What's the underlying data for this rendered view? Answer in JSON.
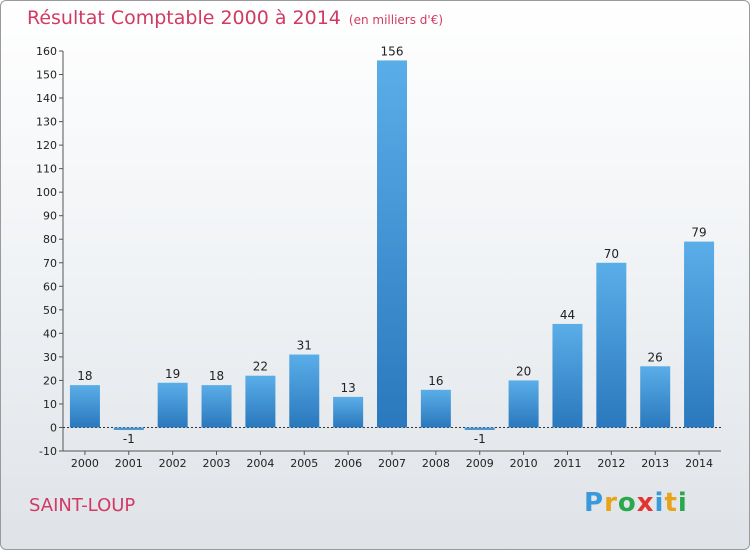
{
  "title": {
    "main": "Résultat Comptable 2000 à 2014",
    "unit": "(en milliers d'€)"
  },
  "place": "SAINT-LOUP",
  "logo": {
    "letters": [
      "P",
      "r",
      "o",
      "x",
      "i",
      "t",
      "i"
    ],
    "colors": [
      "#3a9ad9",
      "#e8a317",
      "#2aa84a",
      "#e3342f",
      "#3a9ad9",
      "#e8a317",
      "#2aa84a"
    ]
  },
  "colors": {
    "bar_light": "#5aaee8",
    "bar_dark": "#2a78bd",
    "title": "#d03a63"
  },
  "chart_data": {
    "type": "bar",
    "categories": [
      "2000",
      "2001",
      "2002",
      "2003",
      "2004",
      "2005",
      "2006",
      "2007",
      "2008",
      "2009",
      "2010",
      "2011",
      "2012",
      "2013",
      "2014"
    ],
    "values": [
      18,
      -1,
      19,
      18,
      22,
      31,
      13,
      156,
      16,
      -1,
      20,
      44,
      70,
      26,
      79
    ],
    "data_labels": [
      "18",
      "-1",
      "19",
      "18",
      "22",
      "31",
      "13",
      "156",
      "16",
      "-1",
      "20",
      "44",
      "70",
      "26",
      "79"
    ],
    "yticks": [
      -10,
      0,
      10,
      20,
      30,
      40,
      50,
      60,
      70,
      80,
      90,
      100,
      110,
      120,
      130,
      140,
      150,
      160
    ],
    "ylim": [
      -10,
      160
    ],
    "grid": false,
    "legend": "none"
  }
}
